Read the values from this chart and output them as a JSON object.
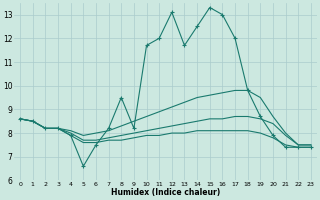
{
  "bg_color": "#cce8e0",
  "grid_color": "#aacccc",
  "line_color": "#1a7a6e",
  "xlabel": "Humidex (Indice chaleur)",
  "xlim": [
    -0.5,
    23.5
  ],
  "ylim": [
    6.0,
    13.5
  ],
  "yticks": [
    6,
    7,
    8,
    9,
    10,
    11,
    12,
    13
  ],
  "xticks": [
    0,
    1,
    2,
    3,
    4,
    5,
    6,
    7,
    8,
    9,
    10,
    11,
    12,
    13,
    14,
    15,
    16,
    17,
    18,
    19,
    20,
    21,
    22,
    23
  ],
  "series1_x": [
    0,
    1,
    2,
    3,
    4,
    5,
    6,
    7,
    8,
    9,
    10,
    11,
    12,
    13,
    14,
    15,
    16,
    17,
    18,
    19,
    20,
    21,
    22,
    23
  ],
  "series1_y": [
    8.6,
    8.5,
    8.2,
    8.2,
    7.9,
    6.6,
    7.5,
    8.2,
    9.5,
    8.2,
    11.7,
    12.0,
    13.1,
    11.7,
    12.5,
    13.3,
    13.0,
    12.0,
    9.8,
    8.7,
    7.9,
    7.4,
    7.4,
    7.4
  ],
  "series2_x": [
    0,
    1,
    2,
    3,
    4,
    5,
    6,
    7,
    8,
    9,
    10,
    11,
    12,
    13,
    14,
    15,
    16,
    17,
    18,
    19,
    20,
    21,
    22,
    23
  ],
  "series2_y": [
    8.6,
    8.5,
    8.2,
    8.2,
    8.1,
    7.9,
    8.0,
    8.1,
    8.3,
    8.5,
    8.7,
    8.9,
    9.1,
    9.3,
    9.5,
    9.6,
    9.7,
    9.8,
    9.8,
    9.5,
    8.7,
    8.0,
    7.5,
    7.5
  ],
  "series3_x": [
    0,
    1,
    2,
    3,
    4,
    5,
    6,
    7,
    8,
    9,
    10,
    11,
    12,
    13,
    14,
    15,
    16,
    17,
    18,
    19,
    20,
    21,
    22,
    23
  ],
  "series3_y": [
    8.6,
    8.5,
    8.2,
    8.2,
    8.0,
    7.7,
    7.7,
    7.8,
    7.9,
    8.0,
    8.1,
    8.2,
    8.3,
    8.4,
    8.5,
    8.6,
    8.6,
    8.7,
    8.7,
    8.6,
    8.4,
    7.9,
    7.5,
    7.5
  ],
  "series4_x": [
    0,
    1,
    2,
    3,
    4,
    5,
    6,
    7,
    8,
    9,
    10,
    11,
    12,
    13,
    14,
    15,
    16,
    17,
    18,
    19,
    20,
    21,
    22,
    23
  ],
  "series4_y": [
    8.6,
    8.5,
    8.2,
    8.2,
    7.9,
    7.6,
    7.6,
    7.7,
    7.7,
    7.8,
    7.9,
    7.9,
    8.0,
    8.0,
    8.1,
    8.1,
    8.1,
    8.1,
    8.1,
    8.0,
    7.8,
    7.5,
    7.4,
    7.4
  ]
}
